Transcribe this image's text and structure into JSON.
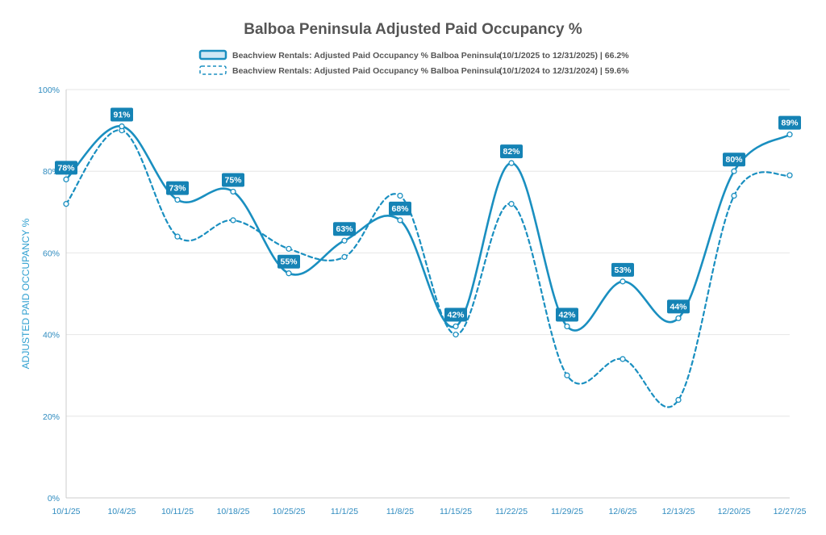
{
  "chart_data": {
    "type": "line",
    "title": "Balboa Peninsula Adjusted Paid Occupancy %",
    "xlabel": "",
    "ylabel": "ADJUSTED PAID OCCUPANCY %",
    "ylim": [
      0,
      100
    ],
    "yticks": [
      "0%",
      "20%",
      "40%",
      "60%",
      "80%",
      "100%"
    ],
    "ytick_values": [
      0,
      20,
      40,
      60,
      80,
      100
    ],
    "categories": [
      "10/1/25",
      "10/4/25",
      "10/11/25",
      "10/18/25",
      "10/25/25",
      "11/1/25",
      "11/8/25",
      "11/15/25",
      "11/22/25",
      "11/29/25",
      "12/6/25",
      "12/13/25",
      "12/20/25",
      "12/27/25"
    ],
    "grid": true,
    "legend_position": "top",
    "colors": {
      "series": "#1a8fc0",
      "label_bg": "#1583b5",
      "grid": "#e6e6e6",
      "axis_text": "#2e8bbf"
    },
    "series": [
      {
        "name": "Beachview Rentals: Adjusted Paid Occupancy % Balboa Peninsula",
        "range": "(10/1/2025 to 12/31/2025) | 66.2%",
        "style": "solid",
        "values": [
          78,
          91,
          73,
          75,
          55,
          63,
          68,
          42,
          82,
          42,
          53,
          44,
          80,
          89
        ],
        "labels": [
          "78%",
          "91%",
          "73%",
          "75%",
          "55%",
          "63%",
          "68%",
          "42%",
          "82%",
          "42%",
          "53%",
          "44%",
          "80%",
          "89%"
        ]
      },
      {
        "name": "Beachview Rentals: Adjusted Paid Occupancy % Balboa Peninsula",
        "range": "(10/1/2024 to 12/31/2024) | 59.6%",
        "style": "dashed",
        "values": [
          72,
          90,
          64,
          68,
          61,
          59,
          74,
          40,
          72,
          30,
          34,
          24,
          74,
          79
        ]
      }
    ]
  }
}
